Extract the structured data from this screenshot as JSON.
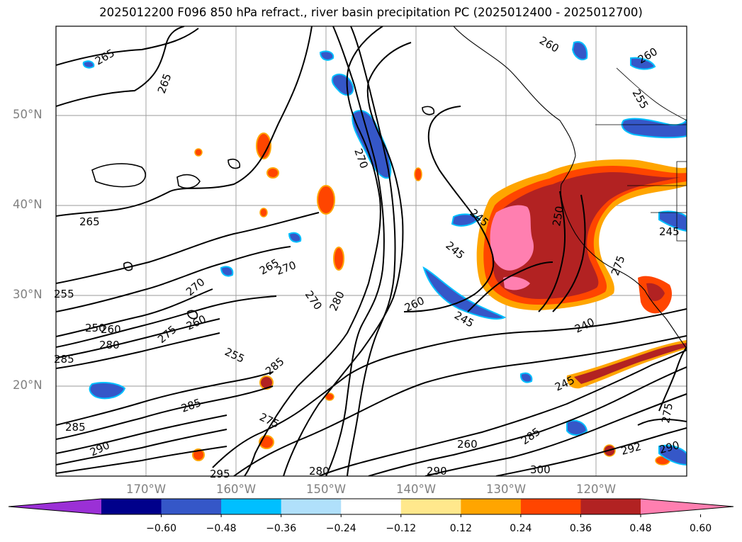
{
  "title": "2025012200 F096 850 hPa refract., river basin precipitation PC (2025012400 - 2025012700)",
  "lat_labels": [
    "50°N",
    "40°N",
    "30°N",
    "20°N"
  ],
  "lon_labels": [
    "170°W",
    "160°W",
    "150°W",
    "140°W",
    "130°W",
    "120°W"
  ],
  "contour_labels": [
    "265",
    "265",
    "265",
    "270",
    "255",
    "250",
    "260",
    "280",
    "285",
    "270",
    "265",
    "260",
    "255",
    "275",
    "285",
    "270",
    "280",
    "270",
    "260",
    "245",
    "245",
    "240",
    "245",
    "260",
    "285",
    "285",
    "275",
    "290",
    "295",
    "280",
    "290",
    "300",
    "292",
    "290",
    "275",
    "260",
    "245",
    "250",
    "260",
    "275",
    "245",
    "255",
    "285"
  ],
  "colorbar": {
    "ticks": [
      "−0.60",
      "−0.48",
      "−0.36",
      "−0.24",
      "−0.12",
      "0.12",
      "0.24",
      "0.36",
      "0.48",
      "0.60"
    ],
    "colors": [
      "#9b30d6",
      "#00008b",
      "#3557c8",
      "#00bfff",
      "#b0e0fb",
      "#ffffff",
      "#ffe88c",
      "#ffa500",
      "#ff4500",
      "#b22222",
      "#ff7fb0"
    ]
  }
}
